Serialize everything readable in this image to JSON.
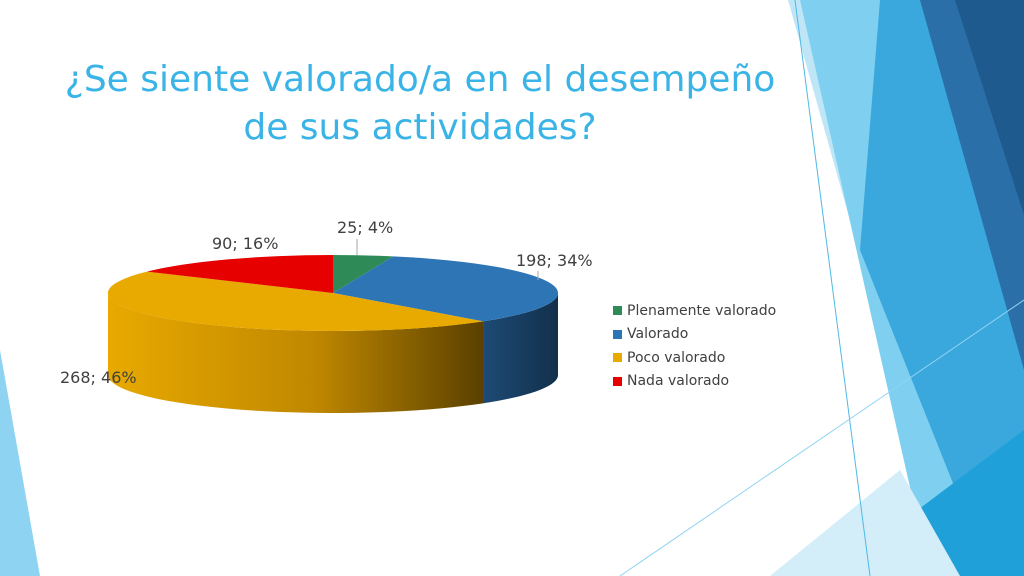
{
  "slide": {
    "title_lines": [
      "¿Se siente valorado/a en el desempeño",
      "de sus actividades?"
    ],
    "colors": {
      "title": "#3ab4e6",
      "accent_light": "#5bc8f0",
      "accent_mid": "#2f8fd0",
      "accent_dark": "#1f5f9a"
    }
  },
  "chart_data": {
    "type": "pie",
    "style": "3d",
    "title": "",
    "categories": [
      "Plenamente valorado",
      "Valorado",
      "Poco valorado",
      "Nada valorado"
    ],
    "values": [
      25,
      198,
      268,
      90
    ],
    "percent_labels": [
      "4%",
      "34%",
      "46%",
      "16%"
    ],
    "data_labels": [
      "25; 4%",
      "198; 34%",
      "268; 46%",
      "90; 16%"
    ],
    "colors": [
      "#2e8b57",
      "#2e75b6",
      "#e8a900",
      "#e60000"
    ],
    "side_colors": [
      "#1a5b37",
      "#163650",
      "#9a6d00",
      "#8c0000"
    ],
    "legend_position": "right"
  }
}
